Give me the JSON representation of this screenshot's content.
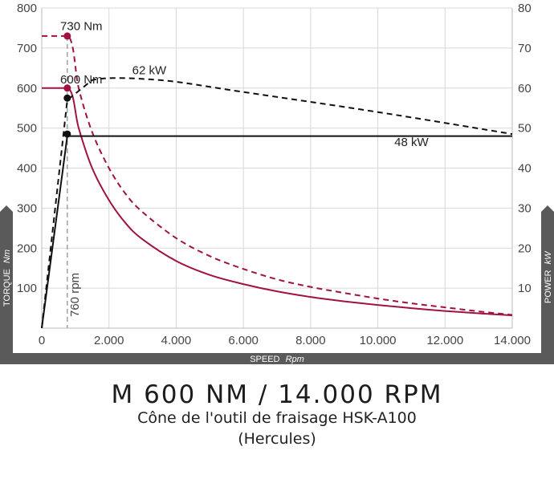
{
  "chart_data": {
    "type": "line",
    "xlabel": "SPEED",
    "xlabel_unit": "Rpm",
    "ylabel": "TORQUE",
    "ylabel_unit": "Nm",
    "y2label": "POWER",
    "y2label_unit": "kW",
    "xlim": [
      0,
      14000
    ],
    "ylim": [
      0,
      800
    ],
    "y2lim": [
      0,
      80
    ],
    "grid": true,
    "x_ticks": [
      "0",
      "2.000",
      "4.000",
      "6.000",
      "8.000",
      "10.000",
      "12.000",
      "14.000"
    ],
    "y_ticks": [
      "100",
      "200",
      "300",
      "400",
      "500",
      "600",
      "700",
      "800"
    ],
    "y2_ticks": [
      "10",
      "20",
      "30",
      "40",
      "50",
      "60",
      "70",
      "80"
    ],
    "series": [
      {
        "axis": "left",
        "color": "#a0123f",
        "dash": false,
        "x": [
          0,
          800,
          1100,
          1500,
          2000,
          2500,
          3000,
          4000,
          5000,
          6000,
          7000,
          8000,
          9000,
          10000,
          11000,
          12000,
          13000,
          14000
        ],
        "y": [
          600,
          600,
          500,
          400,
          320,
          262,
          222,
          168,
          133,
          110,
          92,
          78,
          67,
          58,
          50,
          43,
          37,
          32
        ]
      },
      {
        "axis": "left",
        "color": "#a0123f",
        "dash": true,
        "x": [
          0,
          800,
          1100,
          1500,
          2000,
          2500,
          3000,
          4000,
          5000,
          6000,
          7000,
          8000,
          9000,
          10000,
          11000,
          12000,
          13000,
          14000
        ],
        "y": [
          730,
          730,
          600,
          490,
          400,
          335,
          290,
          225,
          180,
          148,
          122,
          103,
          88,
          74,
          62,
          52,
          42,
          33
        ]
      },
      {
        "axis": "right",
        "color": "#111111",
        "dash": false,
        "x": [
          0,
          760,
          14000
        ],
        "y": [
          0,
          48,
          48
        ]
      },
      {
        "axis": "right",
        "color": "#111111",
        "dash": true,
        "x": [
          0,
          760,
          1500,
          3500,
          6000,
          10000,
          14000
        ],
        "y": [
          0,
          57,
          62,
          62,
          59,
          54,
          48.5
        ]
      }
    ],
    "markers": [
      {
        "x": 760,
        "y": 730,
        "axis": "left",
        "color": "#a0123f"
      },
      {
        "x": 760,
        "y": 600,
        "axis": "left",
        "color": "#a0123f"
      },
      {
        "x": 760,
        "y": 57.5,
        "axis": "right",
        "color": "#111111"
      },
      {
        "x": 760,
        "y": 48.5,
        "axis": "right",
        "color": "#111111"
      }
    ],
    "vline": {
      "x": 760,
      "label": "760 rpm"
    },
    "annotations": [
      {
        "text": "730 Nm",
        "x": 550,
        "y": 745,
        "axis": "left",
        "anchor": "start"
      },
      {
        "text": "600 Nm",
        "x": 550,
        "y": 612,
        "axis": "left",
        "anchor": "start"
      },
      {
        "text": "62 kW",
        "x": 3200,
        "y": 63.5,
        "axis": "right",
        "anchor": "middle"
      },
      {
        "text": "48 kW",
        "x": 11000,
        "y": 45.5,
        "axis": "right",
        "anchor": "middle"
      }
    ],
    "colors": {
      "torque": "#a0123f",
      "power": "#111111",
      "axis_band": "#5a5a5a",
      "grid": "#d8d8d8"
    }
  },
  "caption": {
    "title": "M 600 NM / 14.000 RPM",
    "line1": "Cône de l'outil de fraisage HSK-A100",
    "line2": "(Hercules)"
  }
}
